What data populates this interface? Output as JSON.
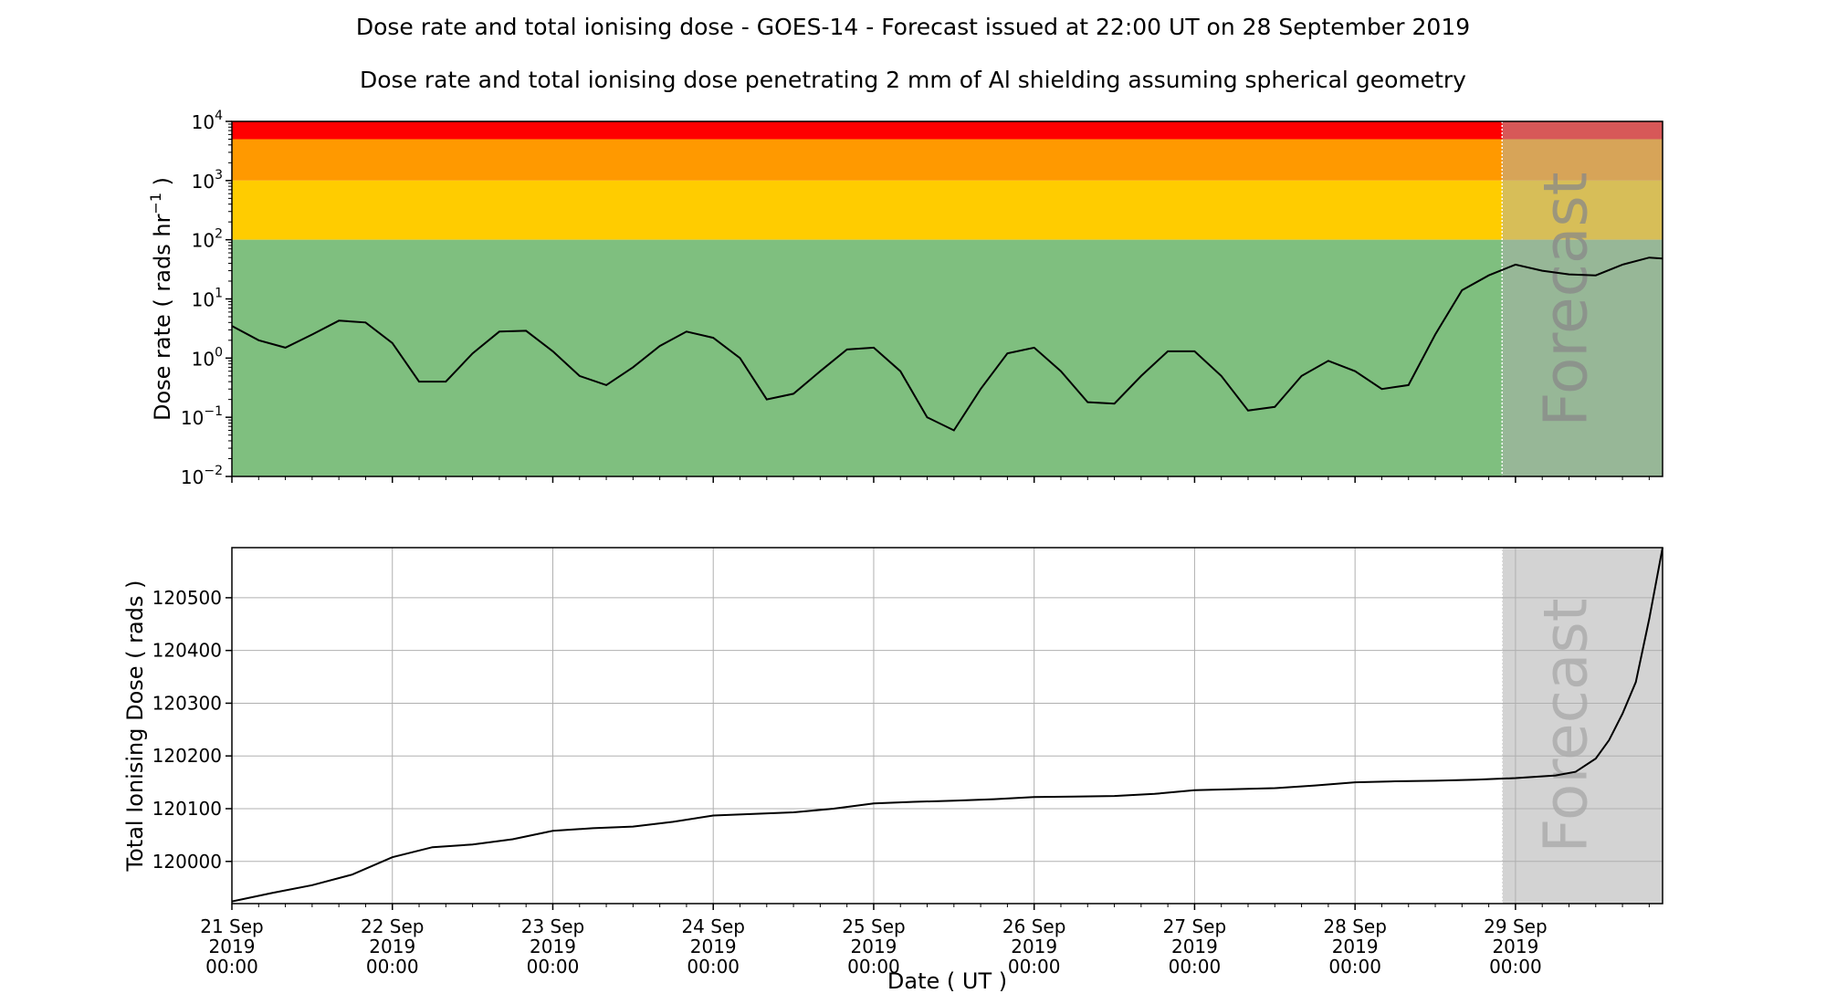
{
  "page": {
    "title": "Dose rate and total ionising dose - GOES-14 - Forecast issued at 22:00 UT on 28 September 2019",
    "subtitle": "Dose rate and total ionising dose penetrating 2 mm of Al shielding assuming spherical geometry"
  },
  "chart_data": [
    {
      "type": "line",
      "name": "dose-rate",
      "ylabel_prefix": "Dose rate ( rads hr",
      "ylabel_exp": "−1",
      "ylabel_suffix": " )",
      "yscale": "log",
      "ylim": [
        0.01,
        10000
      ],
      "xlim": [
        "2019-09-21 00:00",
        "2019-09-29 22:00"
      ],
      "y_ticks": [
        {
          "base": "10",
          "exp": "4",
          "value": 10000
        },
        {
          "base": "10",
          "exp": "3",
          "value": 1000
        },
        {
          "base": "10",
          "exp": "2",
          "value": 100
        },
        {
          "base": "10",
          "exp": "1",
          "value": 10
        },
        {
          "base": "10",
          "exp": "0",
          "value": 1
        },
        {
          "base": "10",
          "exp": "−1",
          "value": 0.1
        },
        {
          "base": "10",
          "exp": "−2",
          "value": 0.01
        }
      ],
      "bands": [
        {
          "from": 5000,
          "to": 10000,
          "color": "#ff0000"
        },
        {
          "from": 1000,
          "to": 5000,
          "color": "#ff9900"
        },
        {
          "from": 100,
          "to": 1000,
          "color": "#ffcc00"
        },
        {
          "from": 0.01,
          "to": 100,
          "color": "#7fbf7f"
        }
      ],
      "forecast_start": "2019-09-28 22:00",
      "forecast_label": "Forecast",
      "grid": false,
      "x": [
        "2019-09-21 00:00",
        "2019-09-21 04:00",
        "2019-09-21 08:00",
        "2019-09-21 12:00",
        "2019-09-21 16:00",
        "2019-09-21 20:00",
        "2019-09-22 00:00",
        "2019-09-22 04:00",
        "2019-09-22 08:00",
        "2019-09-22 12:00",
        "2019-09-22 16:00",
        "2019-09-22 20:00",
        "2019-09-23 00:00",
        "2019-09-23 04:00",
        "2019-09-23 08:00",
        "2019-09-23 12:00",
        "2019-09-23 16:00",
        "2019-09-23 20:00",
        "2019-09-24 00:00",
        "2019-09-24 04:00",
        "2019-09-24 08:00",
        "2019-09-24 12:00",
        "2019-09-24 16:00",
        "2019-09-24 20:00",
        "2019-09-25 00:00",
        "2019-09-25 04:00",
        "2019-09-25 08:00",
        "2019-09-25 12:00",
        "2019-09-25 16:00",
        "2019-09-25 20:00",
        "2019-09-26 00:00",
        "2019-09-26 04:00",
        "2019-09-26 08:00",
        "2019-09-26 12:00",
        "2019-09-26 16:00",
        "2019-09-26 20:00",
        "2019-09-27 00:00",
        "2019-09-27 04:00",
        "2019-09-27 08:00",
        "2019-09-27 12:00",
        "2019-09-27 16:00",
        "2019-09-27 20:00",
        "2019-09-28 00:00",
        "2019-09-28 04:00",
        "2019-09-28 08:00",
        "2019-09-28 12:00",
        "2019-09-28 16:00",
        "2019-09-28 20:00",
        "2019-09-29 00:00",
        "2019-09-29 04:00",
        "2019-09-29 08:00",
        "2019-09-29 12:00",
        "2019-09-29 16:00",
        "2019-09-29 20:00",
        "2019-09-29 22:00"
      ],
      "values": [
        3.5,
        2.0,
        1.5,
        2.5,
        4.3,
        4.0,
        1.8,
        0.4,
        0.4,
        1.2,
        2.8,
        2.9,
        1.3,
        0.5,
        0.35,
        0.7,
        1.6,
        2.8,
        2.2,
        1.0,
        0.2,
        0.25,
        0.6,
        1.4,
        1.5,
        0.6,
        0.1,
        0.06,
        0.3,
        1.2,
        1.5,
        0.6,
        0.18,
        0.17,
        0.5,
        1.3,
        1.3,
        0.5,
        0.13,
        0.15,
        0.5,
        0.9,
        0.6,
        0.3,
        0.35,
        2.5,
        14,
        25,
        38,
        30,
        26,
        25,
        38,
        50,
        48
      ]
    },
    {
      "type": "line",
      "name": "total-dose",
      "ylabel": "Total Ionising Dose ( rads )",
      "xlabel": "Date ( UT )",
      "ylim": [
        119920,
        120595
      ],
      "xlim": [
        "2019-09-21 00:00",
        "2019-09-29 22:00"
      ],
      "y_ticks": [
        {
          "label": "120000",
          "value": 120000
        },
        {
          "label": "120100",
          "value": 120100
        },
        {
          "label": "120200",
          "value": 120200
        },
        {
          "label": "120300",
          "value": 120300
        },
        {
          "label": "120400",
          "value": 120400
        },
        {
          "label": "120500",
          "value": 120500
        }
      ],
      "x_ticks": [
        {
          "line1": "21 Sep",
          "line2": "2019",
          "line3": "00:00",
          "value": "2019-09-21 00:00"
        },
        {
          "line1": "22 Sep",
          "line2": "2019",
          "line3": "00:00",
          "value": "2019-09-22 00:00"
        },
        {
          "line1": "23 Sep",
          "line2": "2019",
          "line3": "00:00",
          "value": "2019-09-23 00:00"
        },
        {
          "line1": "24 Sep",
          "line2": "2019",
          "line3": "00:00",
          "value": "2019-09-24 00:00"
        },
        {
          "line1": "25 Sep",
          "line2": "2019",
          "line3": "00:00",
          "value": "2019-09-25 00:00"
        },
        {
          "line1": "26 Sep",
          "line2": "2019",
          "line3": "00:00",
          "value": "2019-09-26 00:00"
        },
        {
          "line1": "27 Sep",
          "line2": "2019",
          "line3": "00:00",
          "value": "2019-09-27 00:00"
        },
        {
          "line1": "28 Sep",
          "line2": "2019",
          "line3": "00:00",
          "value": "2019-09-28 00:00"
        },
        {
          "line1": "29 Sep",
          "line2": "2019",
          "line3": "00:00",
          "value": "2019-09-29 00:00"
        }
      ],
      "forecast_start": "2019-09-28 22:00",
      "forecast_label": "Forecast",
      "grid": true,
      "x": [
        "2019-09-21 00:00",
        "2019-09-21 06:00",
        "2019-09-21 12:00",
        "2019-09-21 18:00",
        "2019-09-22 00:00",
        "2019-09-22 06:00",
        "2019-09-22 12:00",
        "2019-09-22 18:00",
        "2019-09-23 00:00",
        "2019-09-23 06:00",
        "2019-09-23 12:00",
        "2019-09-23 18:00",
        "2019-09-24 00:00",
        "2019-09-24 06:00",
        "2019-09-24 12:00",
        "2019-09-24 18:00",
        "2019-09-25 00:00",
        "2019-09-25 06:00",
        "2019-09-25 12:00",
        "2019-09-25 18:00",
        "2019-09-26 00:00",
        "2019-09-26 06:00",
        "2019-09-26 12:00",
        "2019-09-26 18:00",
        "2019-09-27 00:00",
        "2019-09-27 06:00",
        "2019-09-27 12:00",
        "2019-09-27 18:00",
        "2019-09-28 00:00",
        "2019-09-28 06:00",
        "2019-09-28 12:00",
        "2019-09-28 18:00",
        "2019-09-29 00:00",
        "2019-09-29 06:00",
        "2019-09-29 09:00",
        "2019-09-29 12:00",
        "2019-09-29 14:00",
        "2019-09-29 16:00",
        "2019-09-29 18:00",
        "2019-09-29 20:00",
        "2019-09-29 22:00"
      ],
      "values": [
        119924,
        119940,
        119955,
        119975,
        120008,
        120027,
        120032,
        120042,
        120058,
        120063,
        120066,
        120075,
        120087,
        120090,
        120093,
        120100,
        120110,
        120113,
        120115,
        120118,
        120122,
        120123,
        120124,
        120128,
        120135,
        120137,
        120139,
        120144,
        120150,
        120152,
        120153,
        120155,
        120158,
        120163,
        120170,
        120195,
        120230,
        120280,
        120340,
        120460,
        120595
      ]
    }
  ]
}
